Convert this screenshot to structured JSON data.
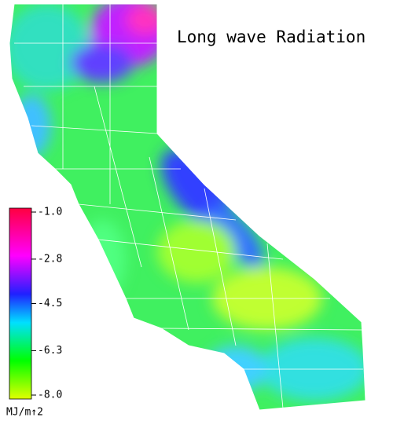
{
  "title": "Long wave Radiation",
  "legend": {
    "lim": [
      -8,
      -1
    ],
    "ticks": [
      {
        "value": -1,
        "label": "-1.0"
      },
      {
        "value": -2.8,
        "label": "-2.8"
      },
      {
        "value": -4.5,
        "label": "-4.5"
      },
      {
        "value": -6.3,
        "label": "-6.3"
      },
      {
        "value": -8,
        "label": "-8.0"
      }
    ],
    "unit": "MJ/m↑2"
  }
}
